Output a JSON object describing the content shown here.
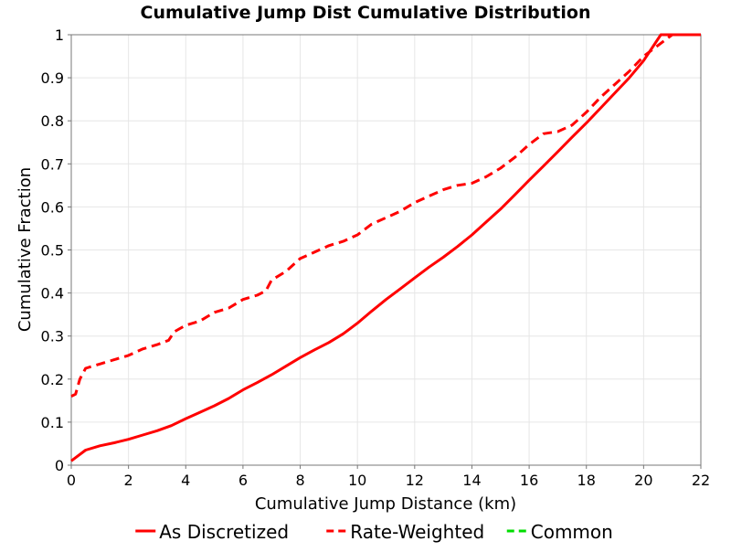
{
  "chart_data": {
    "type": "line",
    "title": "Cumulative Jump Dist Cumulative Distribution",
    "xlabel": "Cumulative Jump Distance (km)",
    "ylabel": "Cumulative Fraction",
    "xlim": [
      0,
      22
    ],
    "ylim": [
      0,
      1
    ],
    "xticks": [
      0,
      2,
      4,
      6,
      8,
      10,
      12,
      14,
      16,
      18,
      20,
      22
    ],
    "xtick_labels": [
      "0",
      "2",
      "4",
      "6",
      "8",
      "10",
      "12",
      "14",
      "16",
      "18",
      "20",
      "22"
    ],
    "yticks": [
      0,
      0.1,
      0.2,
      0.3,
      0.4,
      0.5,
      0.6,
      0.7,
      0.8,
      0.9,
      1
    ],
    "ytick_labels": [
      "0",
      "0.1",
      "0.2",
      "0.3",
      "0.4",
      "0.5",
      "0.6",
      "0.7",
      "0.8",
      "0.9",
      "1"
    ],
    "grid": true,
    "legend_position": "bottom",
    "series": [
      {
        "name": "As Discretized",
        "color": "#ff0000",
        "style": "solid",
        "x": [
          0,
          0.2,
          0.5,
          1,
          1.5,
          2,
          2.5,
          3,
          3.5,
          4,
          4.5,
          5,
          5.5,
          6,
          6.5,
          7,
          7.5,
          8,
          8.5,
          9,
          9.5,
          10,
          10.5,
          11,
          11.5,
          12,
          12.5,
          13,
          13.5,
          14,
          14.5,
          15,
          15.5,
          16,
          16.5,
          17,
          17.5,
          18,
          18.5,
          19,
          19.5,
          20,
          20.6,
          21,
          22
        ],
        "y": [
          0.01,
          0.02,
          0.035,
          0.045,
          0.052,
          0.06,
          0.07,
          0.08,
          0.092,
          0.108,
          0.123,
          0.138,
          0.155,
          0.175,
          0.192,
          0.21,
          0.23,
          0.25,
          0.268,
          0.285,
          0.305,
          0.33,
          0.358,
          0.385,
          0.41,
          0.435,
          0.46,
          0.483,
          0.508,
          0.535,
          0.565,
          0.595,
          0.628,
          0.662,
          0.695,
          0.728,
          0.762,
          0.795,
          0.83,
          0.865,
          0.9,
          0.94,
          1.0,
          1.0,
          1.0
        ]
      },
      {
        "name": "Rate-Weighted",
        "color": "#ff0000",
        "style": "dashed",
        "x": [
          0,
          0.15,
          0.3,
          0.5,
          1,
          1.5,
          2,
          2.5,
          3,
          3.4,
          3.6,
          4,
          4.5,
          5,
          5.5,
          6,
          6.5,
          6.8,
          7,
          7.5,
          8,
          8.5,
          9,
          9.5,
          10,
          10.5,
          11,
          11.5,
          12,
          12.5,
          13,
          13.5,
          14,
          14.5,
          15,
          15.5,
          16,
          16.5,
          17,
          17.5,
          18,
          18.5,
          19,
          19.5,
          20,
          20.5,
          21,
          22
        ],
        "y": [
          0.16,
          0.165,
          0.2,
          0.225,
          0.235,
          0.245,
          0.255,
          0.27,
          0.28,
          0.29,
          0.31,
          0.325,
          0.335,
          0.355,
          0.365,
          0.385,
          0.395,
          0.405,
          0.43,
          0.45,
          0.48,
          0.495,
          0.51,
          0.52,
          0.535,
          0.56,
          0.575,
          0.59,
          0.61,
          0.625,
          0.64,
          0.65,
          0.655,
          0.67,
          0.69,
          0.715,
          0.745,
          0.77,
          0.775,
          0.79,
          0.82,
          0.855,
          0.885,
          0.915,
          0.95,
          0.975,
          1.0,
          1.0
        ]
      },
      {
        "name": "Common",
        "color": "#00dd00",
        "style": "dashed",
        "x": [],
        "y": []
      }
    ]
  }
}
